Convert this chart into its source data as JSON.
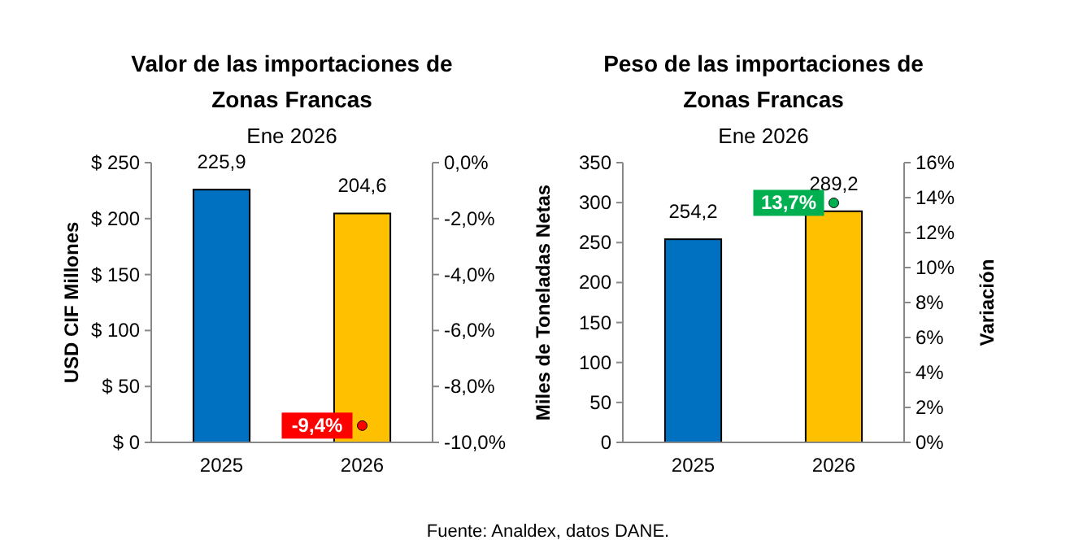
{
  "chart_data": [
    {
      "type": "bar",
      "title": "Valor de las importaciones de Zonas Francas",
      "subtitle": "Ene 2026",
      "ylabel": "USD CIF Millones",
      "categories": [
        "2025",
        "2026"
      ],
      "ylim": [
        0,
        250
      ],
      "yticks": [
        {
          "value": 0,
          "label": "$ 0"
        },
        {
          "value": 50,
          "label": "$ 50"
        },
        {
          "value": 100,
          "label": "$ 100"
        },
        {
          "value": 150,
          "label": "$ 150"
        },
        {
          "value": 200,
          "label": "$ 200"
        },
        {
          "value": 250,
          "label": "$ 250"
        }
      ],
      "y2lim": [
        -10,
        0
      ],
      "y2ticks": [
        {
          "value": 0,
          "label": "0,0%"
        },
        {
          "value": -2,
          "label": "-2,0%"
        },
        {
          "value": -4,
          "label": "-4,0%"
        },
        {
          "value": -6,
          "label": "-6,0%"
        },
        {
          "value": -8,
          "label": "-8,0%"
        },
        {
          "value": -10,
          "label": "-10,0%"
        }
      ],
      "grid": false,
      "series": [
        {
          "colors": [
            "#0070c0",
            "#ffc000"
          ],
          "values": [
            225.9,
            204.6
          ],
          "value_labels": [
            "225,9",
            "204,6"
          ]
        },
        {
          "type": "scatter",
          "axis": "y2",
          "marker": "circle",
          "color": "#ff0000",
          "values": [
            null,
            -9.4
          ],
          "value_labels": [
            null,
            "-9,4%"
          ]
        }
      ]
    },
    {
      "type": "bar",
      "title": "Peso de las importaciones de Zonas Francas",
      "subtitle": "Ene 2026",
      "ylabel": "Miles de Toneladas Netas",
      "y2label": "Variación",
      "categories": [
        "2025",
        "2026"
      ],
      "ylim": [
        0,
        350
      ],
      "yticks": [
        0,
        50,
        100,
        150,
        200,
        250,
        300,
        350
      ],
      "y2lim": [
        0,
        16
      ],
      "y2ticks": [
        {
          "value": 0,
          "label": "0%"
        },
        {
          "value": 2,
          "label": "2%"
        },
        {
          "value": 4,
          "label": "4%"
        },
        {
          "value": 6,
          "label": "6%"
        },
        {
          "value": 8,
          "label": "8%"
        },
        {
          "value": 10,
          "label": "10%"
        },
        {
          "value": 12,
          "label": "12%"
        },
        {
          "value": 14,
          "label": "14%"
        },
        {
          "value": 16,
          "label": "16%"
        }
      ],
      "grid": false,
      "annotations": [
        "Fuente: Analdex, datos DANE."
      ],
      "series": [
        {
          "colors": [
            "#0070c0",
            "#ffc000"
          ],
          "values": [
            254.2,
            289.2
          ],
          "value_labels": [
            "254,2",
            "289,2"
          ]
        },
        {
          "type": "scatter",
          "axis": "y2",
          "marker": "circle",
          "color": "#00b050",
          "values": [
            null,
            13.7
          ],
          "value_labels": [
            null,
            "13,7%"
          ]
        }
      ]
    }
  ]
}
